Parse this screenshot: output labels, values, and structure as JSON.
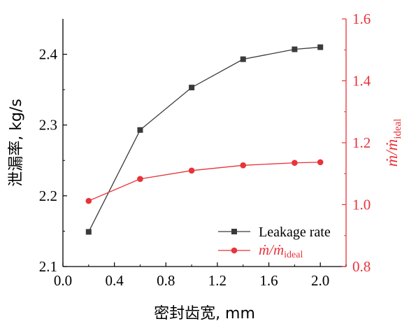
{
  "chart_data": {
    "type": "line",
    "xlabel": "密封齿宽, mm",
    "ylabel_left": "泄漏率, kg/s",
    "ylabel_right": {
      "main": "ṁ/ṁ",
      "sub": "ideal"
    },
    "x_ticks": [
      "0.0",
      "0.4",
      "0.8",
      "1.2",
      "1.6",
      "2.0"
    ],
    "y_left_ticks": [
      "2.1",
      "2.2",
      "2.3",
      "2.4"
    ],
    "y_right_ticks": [
      "0.8",
      "1.0",
      "1.2",
      "1.4",
      "1.6"
    ],
    "xlim": [
      0.0,
      2.2
    ],
    "ylim_left": [
      2.1,
      2.45
    ],
    "ylim_right": [
      0.8,
      1.6
    ],
    "colors": {
      "left": "#3a3a3a",
      "right": "#e8333a"
    },
    "legend_position": "bottom-right",
    "series": [
      {
        "name": "Leakage rate",
        "axis": "left",
        "marker": "square",
        "x": [
          0.2,
          0.6,
          1.0,
          1.4,
          1.8,
          2.0
        ],
        "y": [
          2.149,
          2.293,
          2.353,
          2.393,
          2.407,
          2.41
        ]
      },
      {
        "name": "ṁ/ṁ",
        "name_sub": "ideal",
        "axis": "right",
        "marker": "circle",
        "x": [
          0.2,
          0.6,
          1.0,
          1.4,
          1.8,
          2.0
        ],
        "y": [
          1.012,
          1.083,
          1.11,
          1.127,
          1.135,
          1.137
        ]
      }
    ]
  }
}
